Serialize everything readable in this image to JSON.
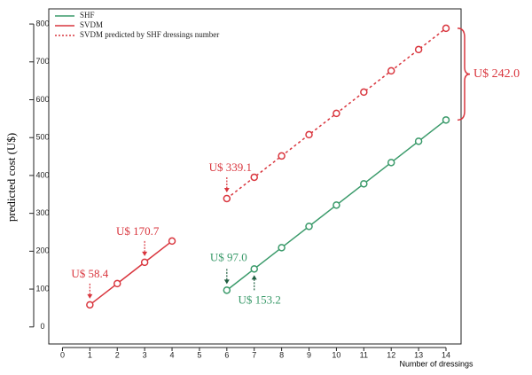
{
  "chart_data": {
    "type": "line",
    "ylabel": "predicted cost (U$)",
    "xlabel": "Number of dressings",
    "xlim": [
      -0.5,
      14.55
    ],
    "ylim": [
      -45,
      840
    ],
    "xticks": [
      0,
      1,
      2,
      3,
      4,
      5,
      6,
      7,
      8,
      9,
      10,
      11,
      12,
      13,
      14
    ],
    "yticks": [
      0,
      100,
      200,
      300,
      400,
      500,
      600,
      700,
      800
    ],
    "legend": "top-left",
    "series": [
      {
        "name": "SHF",
        "color": "#3a9a6a",
        "linestyle": "solid",
        "x": [
          6,
          7,
          8,
          9,
          10,
          11,
          12,
          13,
          14
        ],
        "values": [
          97.0,
          153.2,
          209.4,
          265.6,
          321.8,
          378.0,
          434.2,
          490.4,
          546.6
        ],
        "value_labels": [
          "U$ 97.0",
          "U$ 153.2",
          null,
          null,
          null,
          null,
          null,
          null,
          null
        ]
      },
      {
        "name": "SVDM",
        "color": "#d9363e",
        "linestyle": "solid",
        "x": [
          1,
          2,
          3,
          4
        ],
        "values": [
          58.4,
          114.5,
          170.7,
          226.8
        ],
        "value_labels": [
          "U$ 58.4",
          null,
          "U$ 170.7",
          null
        ]
      },
      {
        "name": "SVDM predicted by SHF dressings number",
        "color": "#d9363e",
        "linestyle": "dotted",
        "x": [
          6,
          7,
          8,
          9,
          10,
          11,
          12,
          13,
          14
        ],
        "values": [
          339.1,
          395.3,
          451.5,
          507.7,
          563.9,
          620.1,
          676.3,
          732.5,
          788.7
        ],
        "value_labels": [
          "U$ 339.1",
          null,
          null,
          null,
          null,
          null,
          null,
          null,
          null
        ]
      }
    ],
    "annotation": "U$ 242.0"
  }
}
